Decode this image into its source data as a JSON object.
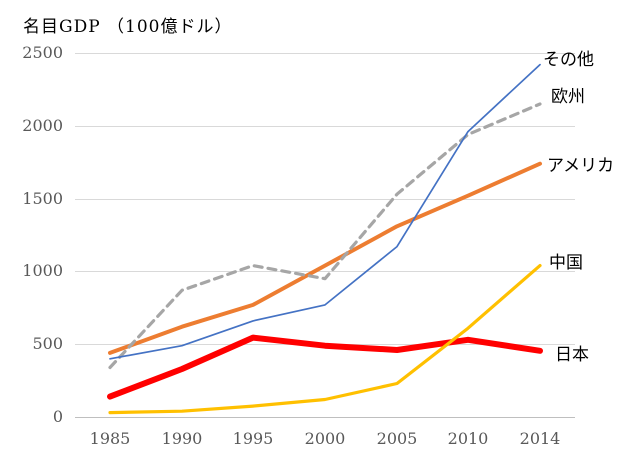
{
  "chart_data": {
    "type": "line",
    "title": "名目GDP （100億ドル）",
    "x_tick_labels": [
      "1985",
      "1990",
      "1995",
      "2000",
      "2005",
      "2010",
      "2014"
    ],
    "y_ticks": [
      0,
      500,
      1000,
      1500,
      2000,
      2500
    ],
    "ylim": [
      0,
      2500
    ],
    "grid": "horizontal-only",
    "legend_position": "right-end-of-line-labels",
    "axis_text_color": "#595959",
    "gridline_color": "#D9D9D9",
    "axis_line_color": "#BFBFBF",
    "background_color": "#FFFFFF",
    "series": [
      {
        "id": "nihon",
        "name": "日本",
        "color": "#FF0000",
        "stroke_width": 6,
        "dashed": false,
        "values": [
          140,
          330,
          545,
          490,
          460,
          530,
          455
        ]
      },
      {
        "id": "chugoku",
        "name": "中国",
        "color": "#FFC000",
        "stroke_width": 3.2,
        "dashed": false,
        "values": [
          30,
          40,
          75,
          120,
          230,
          610,
          1040
        ]
      },
      {
        "id": "america",
        "name": "アメリカ",
        "color": "#ED7D31",
        "stroke_width": 4,
        "dashed": false,
        "values": [
          440,
          620,
          770,
          1040,
          1310,
          1520,
          1740
        ]
      },
      {
        "id": "oshu",
        "name": "欧州",
        "color": "#A6A6A6",
        "stroke_width": 3.2,
        "dashed": true,
        "values": [
          340,
          870,
          1040,
          950,
          1530,
          1940,
          2150
        ]
      },
      {
        "id": "sonota",
        "name": "その他",
        "color": "#4472C4",
        "stroke_width": 1.7,
        "dashed": false,
        "values": [
          400,
          490,
          660,
          770,
          1170,
          1960,
          2420
        ]
      }
    ]
  }
}
